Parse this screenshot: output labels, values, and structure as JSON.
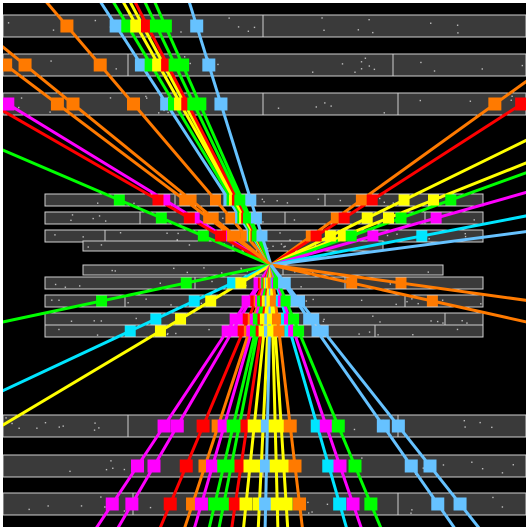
{
  "colors": {
    "background": "#000000",
    "frame": "#ffffff",
    "detector_fill": "#3a3a3a",
    "detector_edge": "#cfcfcf",
    "hit_dots": "#bdbdbd"
  },
  "event_display": {
    "track_count": 46,
    "detector_layers": 10,
    "track_colors": [
      "#ff7a00",
      "#ff0000",
      "#ff00ff",
      "#00ff00",
      "#ffff00",
      "#00e5ff",
      "#66c2ff"
    ]
  }
}
